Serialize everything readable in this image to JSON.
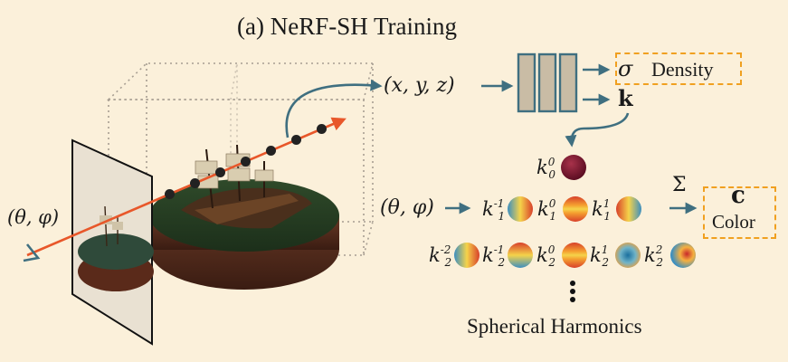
{
  "title": "(a) NeRF-SH Training",
  "caption": "Spherical Harmonics",
  "inputs": {
    "position": "(x, y, z)",
    "direction": "(θ, φ)",
    "direction_left": "(θ, φ)"
  },
  "outputs": {
    "sigma_symbol": "σ",
    "density_label": "Density",
    "k_symbol": "k",
    "sum_symbol": "Σ",
    "c_symbol": "c",
    "color_label": "Color"
  },
  "sh_rows": [
    [
      {
        "l": "0",
        "m": "0"
      }
    ],
    [
      {
        "l": "1",
        "m": "-1"
      },
      {
        "l": "1",
        "m": "0"
      },
      {
        "l": "1",
        "m": "1"
      }
    ],
    [
      {
        "l": "2",
        "m": "-2"
      },
      {
        "l": "2",
        "m": "-1"
      },
      {
        "l": "2",
        "m": "0"
      },
      {
        "l": "2",
        "m": "1"
      },
      {
        "l": "2",
        "m": "2"
      }
    ]
  ],
  "colors": {
    "background": "#fbf0da",
    "arrow": "#3f6f80",
    "ray": "#e8572a",
    "mlp": "#c9bca5",
    "dashed": "#f0a020",
    "dot": "#222222"
  }
}
